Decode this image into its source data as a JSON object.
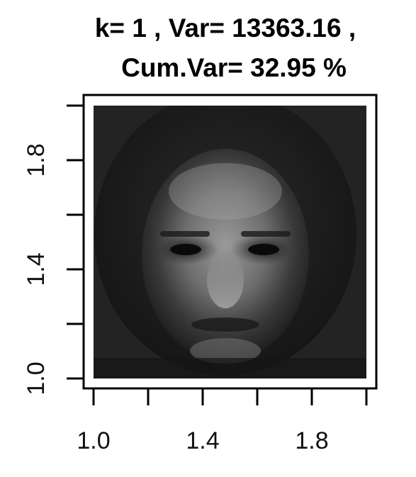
{
  "chart_data": {
    "type": "heatmap",
    "title_line1": "k= 1 , Var= 13363.16 ,",
    "title_line2": "Cum.Var= 32.95 %",
    "xlabel": "",
    "ylabel": "",
    "xlim": [
      1.0,
      2.0
    ],
    "ylim": [
      1.0,
      2.0
    ],
    "x_ticks": [
      1.0,
      1.2,
      1.4,
      1.6,
      1.8,
      2.0
    ],
    "y_ticks": [
      1.0,
      1.2,
      1.4,
      1.6,
      1.8,
      2.0
    ],
    "x_tick_labels": [
      {
        "value": 1.0,
        "label": "1.0"
      },
      {
        "value": 1.4,
        "label": "1.4"
      },
      {
        "value": 1.8,
        "label": "1.8"
      }
    ],
    "y_tick_labels": [
      {
        "value": 1.0,
        "label": "1.0"
      },
      {
        "value": 1.4,
        "label": "1.4"
      },
      {
        "value": 1.8,
        "label": "1.8"
      }
    ],
    "image_content": "grayscale face (eigenface component)",
    "colormap": "grayscale",
    "grid": false,
    "legend": "none"
  }
}
